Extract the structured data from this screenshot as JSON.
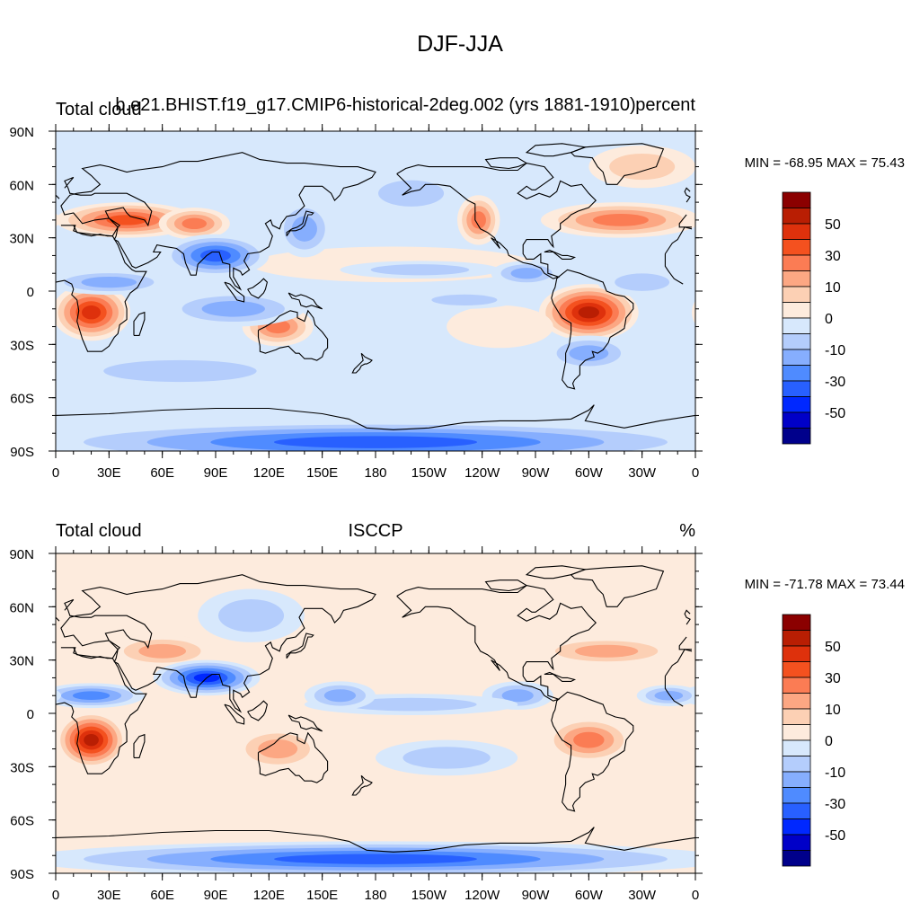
{
  "figure": {
    "title": "DJF-JJA"
  },
  "colors": {
    "levels": [
      "#00008b",
      "#0000c8",
      "#0028ff",
      "#2860ff",
      "#4f8bff",
      "#86aefe",
      "#b4cdfc",
      "#d7e8fc",
      "#fdebdd",
      "#fcd0b4",
      "#fca783",
      "#fb7c54",
      "#f4511f",
      "#de310c",
      "#b91e03",
      "#8b0000"
    ],
    "land_outline": "#000000",
    "frame": "#000000"
  },
  "chart_data": [
    {
      "type": "heatmap",
      "panel": "top",
      "left_label": "Total cloud",
      "center_label": "b.e21.BHIST.f19_g17.CMIP6-historical-2deg.002 (yrs 1881-1910)",
      "right_label": "percent",
      "x_ticks": [
        "0",
        "30E",
        "60E",
        "90E",
        "120E",
        "150E",
        "180",
        "150W",
        "120W",
        "90W",
        "60W",
        "30W",
        "0"
      ],
      "y_ticks": [
        "90N",
        "60N",
        "30N",
        "0",
        "30S",
        "60S",
        "90S"
      ],
      "xlim": [
        0,
        360
      ],
      "ylim": [
        -90,
        90
      ],
      "min_max_label": "MIN = -68.95 MAX =  75.43",
      "min": -68.95,
      "max": 75.43,
      "colorbar_labels": [
        "50",
        "30",
        "10",
        "0",
        "-10",
        "-30",
        "-50"
      ],
      "features": [
        {
          "lon": 20,
          "lat": -12,
          "value": 60,
          "rx": 22,
          "ry": 16
        },
        {
          "lon": 300,
          "lat": -12,
          "value": 68,
          "rx": 28,
          "ry": 16
        },
        {
          "lon": 40,
          "lat": 40,
          "value": 42,
          "rx": 40,
          "ry": 10
        },
        {
          "lon": 78,
          "lat": 38,
          "value": 38,
          "rx": 20,
          "ry": 9
        },
        {
          "lon": 125,
          "lat": -20,
          "value": 32,
          "rx": 20,
          "ry": 11
        },
        {
          "lon": 238,
          "lat": 40,
          "value": 38,
          "rx": 12,
          "ry": 14
        },
        {
          "lon": 318,
          "lat": 40,
          "value": 32,
          "rx": 45,
          "ry": 10
        },
        {
          "lon": 190,
          "lat": 15,
          "value": 10,
          "rx": 80,
          "ry": 10
        },
        {
          "lon": 330,
          "lat": 70,
          "value": 12,
          "rx": 30,
          "ry": 12
        },
        {
          "lon": 250,
          "lat": -20,
          "value": 10,
          "rx": 30,
          "ry": 12
        },
        {
          "lon": 90,
          "lat": 20,
          "value": -48,
          "rx": 30,
          "ry": 12
        },
        {
          "lon": 140,
          "lat": 35,
          "value": -30,
          "rx": 16,
          "ry": 16
        },
        {
          "lon": 100,
          "lat": -10,
          "value": -22,
          "rx": 40,
          "ry": 10
        },
        {
          "lon": 180,
          "lat": -85,
          "value": -48,
          "rx": 200,
          "ry": 12
        },
        {
          "lon": 30,
          "lat": 5,
          "value": -22,
          "rx": 35,
          "ry": 7
        },
        {
          "lon": 265,
          "lat": 10,
          "value": -26,
          "rx": 20,
          "ry": 7
        },
        {
          "lon": 205,
          "lat": 12,
          "value": -18,
          "rx": 45,
          "ry": 5
        },
        {
          "lon": 230,
          "lat": -5,
          "value": -20,
          "rx": 30,
          "ry": 5
        },
        {
          "lon": 300,
          "lat": -35,
          "value": -24,
          "rx": 25,
          "ry": 10
        },
        {
          "lon": 70,
          "lat": -45,
          "value": -12,
          "rx": 70,
          "ry": 10
        },
        {
          "lon": 200,
          "lat": 55,
          "value": -18,
          "rx": 30,
          "ry": 12
        },
        {
          "lon": 330,
          "lat": 5,
          "value": -18,
          "rx": 25,
          "ry": 8
        }
      ]
    },
    {
      "type": "heatmap",
      "panel": "bottom",
      "left_label": "Total cloud",
      "center_label": "ISCCP",
      "right_label": "%",
      "x_ticks": [
        "0",
        "30E",
        "60E",
        "90E",
        "120E",
        "150E",
        "180",
        "150W",
        "120W",
        "90W",
        "60W",
        "30W",
        "0"
      ],
      "y_ticks": [
        "90N",
        "60N",
        "30N",
        "0",
        "30S",
        "60S",
        "90S"
      ],
      "xlim": [
        0,
        360
      ],
      "ylim": [
        -90,
        90
      ],
      "min_max_label": "MIN = -71.78 MAX =  73.44",
      "min": -71.78,
      "max": 73.44,
      "colorbar_labels": [
        "50",
        "30",
        "10",
        "0",
        "-10",
        "-30",
        "-50"
      ],
      "features": [
        {
          "lon": 20,
          "lat": -15,
          "value": 62,
          "rx": 20,
          "ry": 16
        },
        {
          "lon": 125,
          "lat": -20,
          "value": 30,
          "rx": 25,
          "ry": 12
        },
        {
          "lon": 300,
          "lat": -15,
          "value": 35,
          "rx": 25,
          "ry": 13
        },
        {
          "lon": 60,
          "lat": 35,
          "value": 26,
          "rx": 30,
          "ry": 9
        },
        {
          "lon": 310,
          "lat": 35,
          "value": 22,
          "rx": 40,
          "ry": 8
        },
        {
          "lon": 180,
          "lat": -45,
          "value": 10,
          "rx": 200,
          "ry": 7
        },
        {
          "lon": 270,
          "lat": 60,
          "value": 10,
          "rx": 50,
          "ry": 10
        },
        {
          "lon": 180,
          "lat": 88,
          "value": 10,
          "rx": 200,
          "ry": 4
        },
        {
          "lon": 85,
          "lat": 20,
          "value": -55,
          "rx": 30,
          "ry": 10
        },
        {
          "lon": 20,
          "lat": 10,
          "value": -40,
          "rx": 30,
          "ry": 7
        },
        {
          "lon": 260,
          "lat": 10,
          "value": -30,
          "rx": 20,
          "ry": 8
        },
        {
          "lon": 180,
          "lat": -82,
          "value": -45,
          "rx": 200,
          "ry": 10
        },
        {
          "lon": 110,
          "lat": 55,
          "value": -15,
          "rx": 30,
          "ry": 15
        },
        {
          "lon": 200,
          "lat": 5,
          "value": -12,
          "rx": 60,
          "ry": 6
        },
        {
          "lon": 220,
          "lat": -25,
          "value": -15,
          "rx": 40,
          "ry": 10
        },
        {
          "lon": 345,
          "lat": 10,
          "value": -30,
          "rx": 18,
          "ry": 6
        },
        {
          "lon": 160,
          "lat": 10,
          "value": -22,
          "rx": 20,
          "ry": 8
        }
      ]
    }
  ]
}
